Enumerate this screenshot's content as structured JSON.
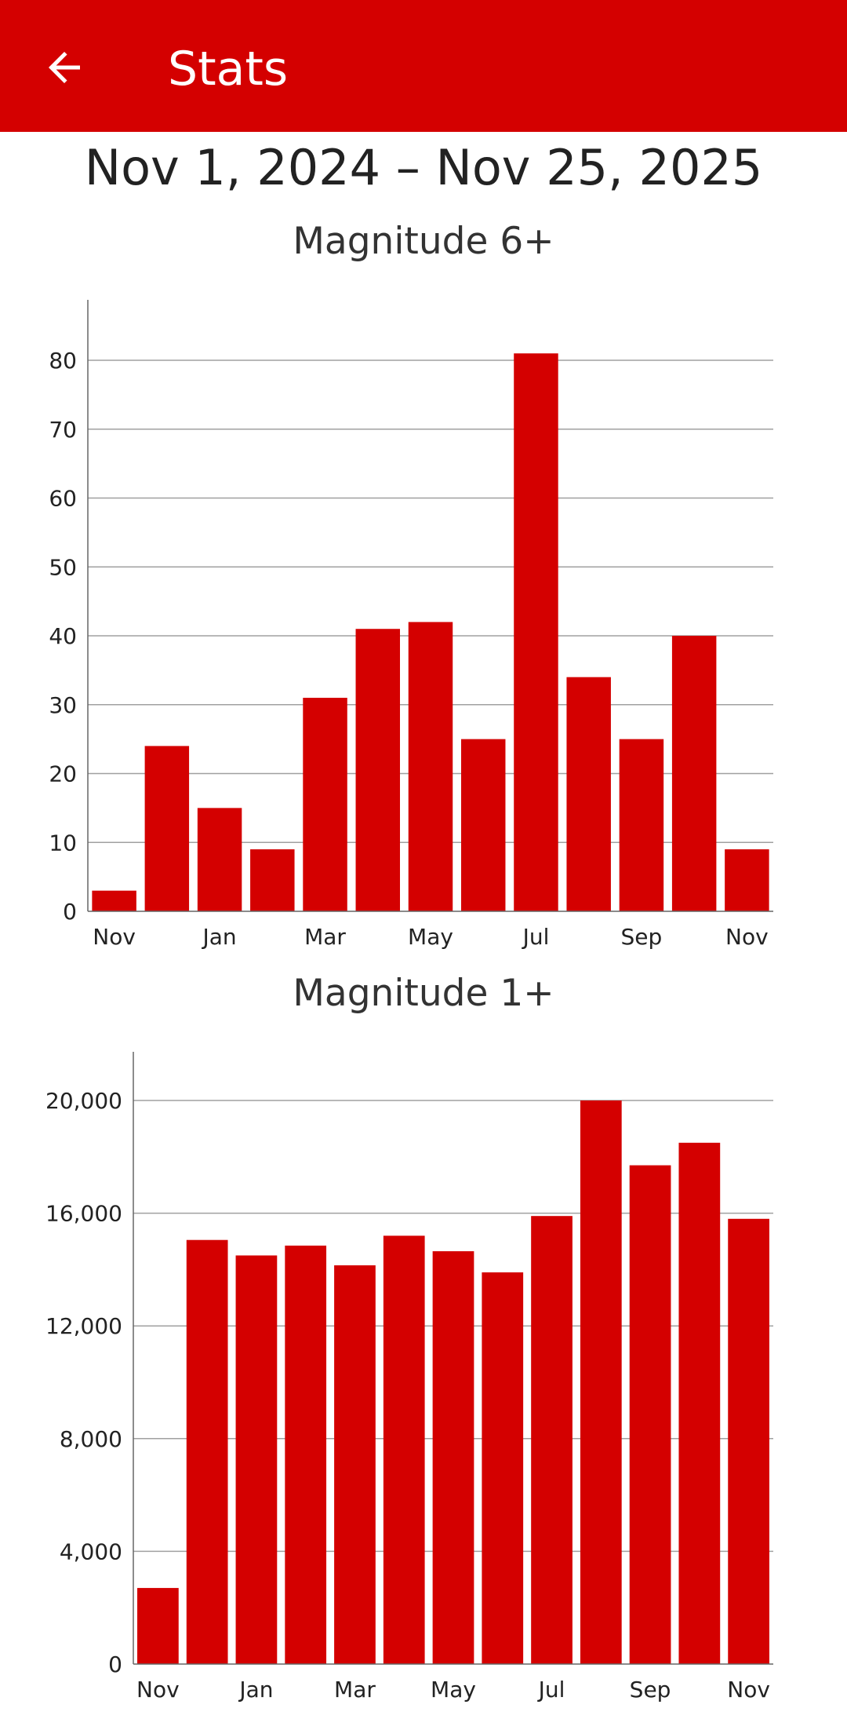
{
  "app_bar": {
    "title": "Stats",
    "back_icon": "arrow-left-icon"
  },
  "date_range": "Nov 1, 2024 – Nov 25, 2025",
  "colors": {
    "accent": "#d40000",
    "bar": "#d40000",
    "grid": "#a0a0a0",
    "axis": "#666666"
  },
  "chart_data": [
    {
      "type": "bar",
      "title": "Magnitude 6+",
      "categories": [
        "Nov",
        "Dec",
        "Jan",
        "Feb",
        "Mar",
        "Apr",
        "May",
        "Jun",
        "Jul",
        "Aug",
        "Sep",
        "Oct",
        "Nov"
      ],
      "category_labels": [
        "Nov",
        "",
        "Jan",
        "",
        "Mar",
        "",
        "May",
        "",
        "Jul",
        "",
        "Sep",
        "",
        "Nov"
      ],
      "values": [
        3,
        24,
        15,
        9,
        31,
        41,
        42,
        25,
        81,
        34,
        25,
        40,
        9
      ],
      "ylim": [
        0,
        89
      ],
      "yticks": [
        0,
        10,
        20,
        30,
        40,
        50,
        60,
        70,
        80
      ],
      "ytick_labels": [
        "0",
        "10",
        "20",
        "30",
        "40",
        "50",
        "60",
        "70",
        "80"
      ],
      "grid": true,
      "legend": "none"
    },
    {
      "type": "bar",
      "title": "Magnitude 1+",
      "categories": [
        "Nov",
        "Dec",
        "Jan",
        "Feb",
        "Mar",
        "Apr",
        "May",
        "Jun",
        "Jul",
        "Aug",
        "Sep",
        "Oct",
        "Nov"
      ],
      "category_labels": [
        "Nov",
        "",
        "Jan",
        "",
        "Mar",
        "",
        "May",
        "",
        "Jul",
        "",
        "Sep",
        "",
        "Nov"
      ],
      "values": [
        2700,
        15050,
        14500,
        14850,
        14150,
        15200,
        14650,
        13900,
        15900,
        20000,
        17700,
        18500,
        15800
      ],
      "ylim": [
        0,
        21800
      ],
      "yticks": [
        0,
        4000,
        8000,
        12000,
        16000,
        20000
      ],
      "ytick_labels": [
        "0",
        "4,000",
        "8,000",
        "12,000",
        "16,000",
        "20,000"
      ],
      "grid": true,
      "legend": "none"
    }
  ]
}
